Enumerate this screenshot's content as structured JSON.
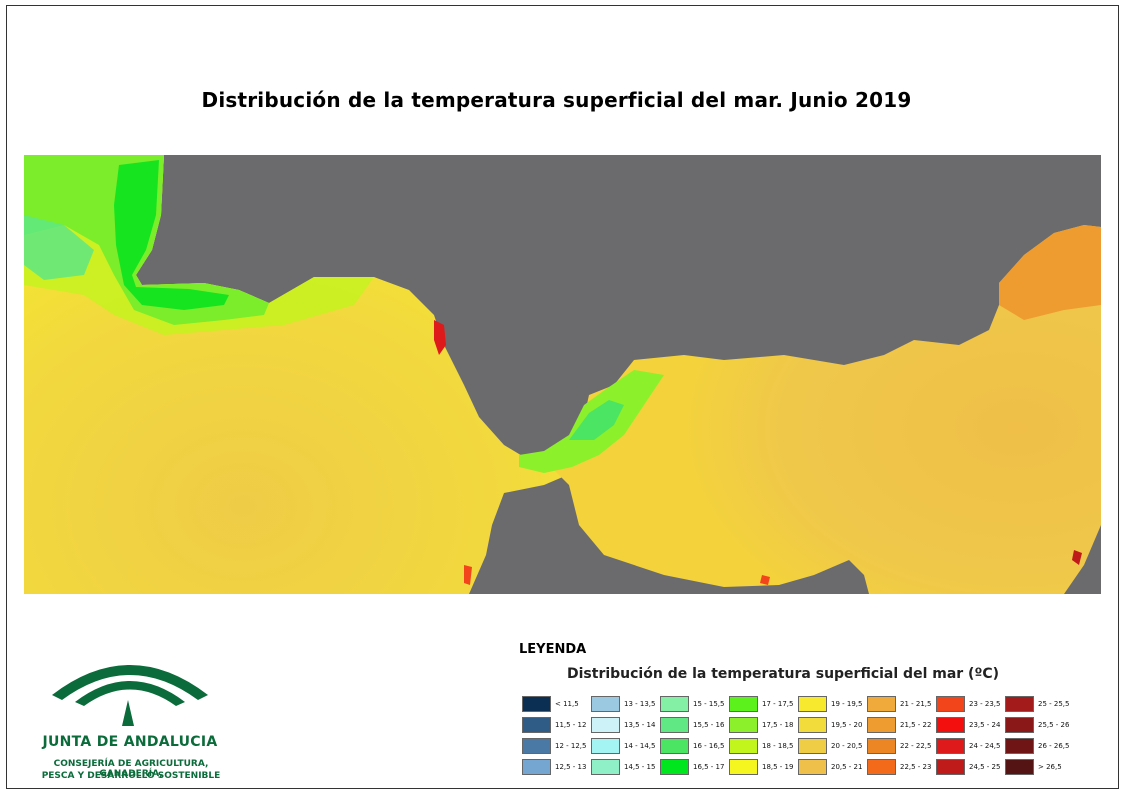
{
  "title": "Distribución de la temperatura superficial del mar. Junio 2019",
  "legend": {
    "heading": "LEYENDA",
    "subtitle": "Distribución de la temperatura superficial del mar (ºC)",
    "classes": [
      {
        "label": "< 11,5",
        "color": "#0a2f52"
      },
      {
        "label": "11,5 - 12",
        "color": "#2e5c86"
      },
      {
        "label": "12 - 12,5",
        "color": "#4a79a6"
      },
      {
        "label": "12,5 - 13",
        "color": "#74a6d1"
      },
      {
        "label": "13 - 13,5",
        "color": "#9cc9e2"
      },
      {
        "label": "13,5 - 14",
        "color": "#cdf3f8"
      },
      {
        "label": "14 - 14,5",
        "color": "#a3f4f2"
      },
      {
        "label": "14,5 - 15",
        "color": "#8ff0c8"
      },
      {
        "label": "15 - 15,5",
        "color": "#83f0a6"
      },
      {
        "label": "15,5 - 16",
        "color": "#5fe883"
      },
      {
        "label": "16 - 16,5",
        "color": "#4ce463"
      },
      {
        "label": "16,5 - 17",
        "color": "#00e61e"
      },
      {
        "label": "17 - 17,5",
        "color": "#5cf01c"
      },
      {
        "label": "17,5 - 18",
        "color": "#8cf02a"
      },
      {
        "label": "18 - 18,5",
        "color": "#c2f51c"
      },
      {
        "label": "18,5 - 19",
        "color": "#f5f520"
      },
      {
        "label": "19 - 19,5",
        "color": "#f7ea2e"
      },
      {
        "label": "19,5 - 20",
        "color": "#f2dc3c"
      },
      {
        "label": "20 - 20,5",
        "color": "#efce45"
      },
      {
        "label": "20,5 - 21",
        "color": "#efc04a"
      },
      {
        "label": "21 - 21,5",
        "color": "#f0aa3c"
      },
      {
        "label": "21,5 - 22",
        "color": "#ee9c30"
      },
      {
        "label": "22 - 22,5",
        "color": "#ec8624"
      },
      {
        "label": "22,5 - 23",
        "color": "#f36a1a"
      },
      {
        "label": "23 - 23,5",
        "color": "#f2451c"
      },
      {
        "label": "23,5 - 24",
        "color": "#f40f0f"
      },
      {
        "label": "24 - 24,5",
        "color": "#de1a1a"
      },
      {
        "label": "24,5 - 25",
        "color": "#c01b1b"
      },
      {
        "label": "25 - 25,5",
        "color": "#a31b1b"
      },
      {
        "label": "25,5 - 26",
        "color": "#8b1818"
      },
      {
        "label": "26 - 26,5",
        "color": "#701515"
      },
      {
        "label": "> 26,5",
        "color": "#541414"
      }
    ]
  },
  "logo": {
    "name": "JUNTA DE ANDALUCIA",
    "line1": "CONSEJERÍA DE AGRICULTURA, GANADERÍA,",
    "line2": "PESCA Y DESARROLLO SOSTENIBLE",
    "color": "#0b6b3a"
  },
  "map": {
    "land_color": "#6b6b6e"
  }
}
